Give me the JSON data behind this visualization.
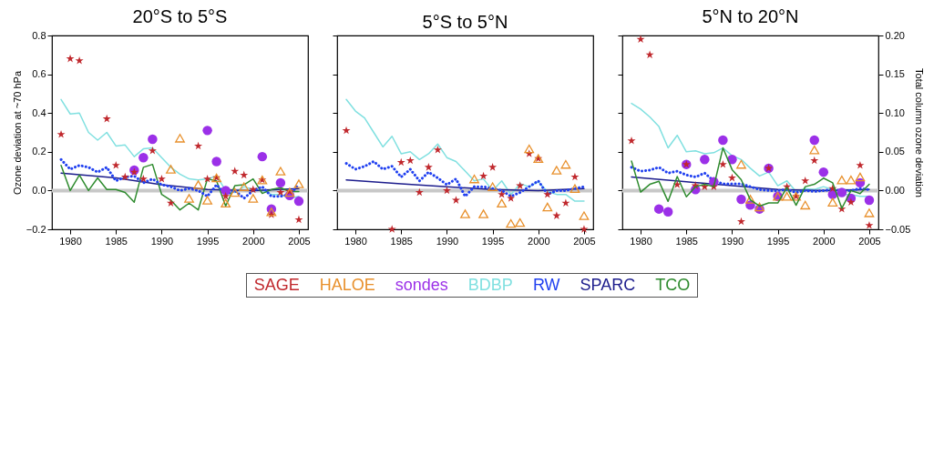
{
  "chart_data": [
    {
      "type": "line",
      "title": "20°S to 5°S",
      "ylabel": "Ozone deviation at ~70 hPa",
      "legend": "bottom",
      "xlim": [
        1978,
        2006
      ],
      "xticks": [
        1980,
        1985,
        1990,
        1995,
        2000,
        2005
      ],
      "ylim": [
        -0.2,
        0.8
      ],
      "yticks": [
        {
          "value": -0.2,
          "label": "−0.2"
        },
        {
          "value": 0,
          "label": "0.0"
        },
        0.2,
        0.4,
        0.6,
        0.8
      ],
      "ref_lines": [
        {
          "axis": "y",
          "value": 0,
          "color": "#c8c8c8"
        }
      ],
      "series": [
        {
          "name": "SAGE",
          "type": "scatter",
          "marker": "star",
          "color": "#c0282d",
          "x": [
            1979,
            1980,
            1981,
            1984,
            1985,
            1986,
            1987,
            1988,
            1989,
            1990,
            1991,
            1994,
            1995,
            1996,
            1997,
            1998,
            1999,
            2000,
            2001,
            2002,
            2003,
            2004,
            2005
          ],
          "values": [
            0.29,
            0.68,
            0.67,
            0.37,
            0.13,
            0.07,
            0.095,
            0.06,
            0.205,
            0.06,
            -0.065,
            0.23,
            0.06,
            0.067,
            -0.03,
            0.1,
            0.08,
            0.005,
            0.055,
            -0.125,
            -0.01,
            -0.005,
            -0.15
          ]
        },
        {
          "name": "HALOE",
          "type": "scatter",
          "marker": "triangle",
          "color": "#e8902c",
          "x": [
            1991,
            1992,
            1993,
            1994,
            1995,
            1996,
            1997,
            1998,
            1999,
            2000,
            2001,
            2002,
            2003,
            2004,
            2005
          ],
          "values": [
            0.11,
            0.27,
            -0.04,
            0.03,
            -0.05,
            0.065,
            -0.065,
            -0.01,
            0.02,
            -0.04,
            0.055,
            -0.11,
            0.1,
            -0.01,
            0.035
          ]
        },
        {
          "name": "sondes",
          "type": "scatter",
          "marker": "circle",
          "color": "#9b30e8",
          "x": [
            1987,
            1988,
            1989,
            1995,
            1996,
            1997,
            2001,
            2002,
            2003,
            2004,
            2005
          ],
          "values": [
            0.105,
            0.17,
            0.265,
            0.31,
            0.15,
            0.0,
            0.175,
            -0.095,
            0.04,
            -0.025,
            -0.055
          ]
        },
        {
          "name": "BDBP",
          "type": "line",
          "line_style": "solid",
          "color": "#80e0e0",
          "x": [
            1979,
            1980,
            1981,
            1982,
            1983,
            1984,
            1985,
            1986,
            1987,
            1988,
            1989,
            1990,
            1991,
            1992,
            1993,
            1994,
            1995,
            1996,
            1997,
            1998,
            1999,
            2000,
            2001,
            2002,
            2003,
            2004,
            2005
          ],
          "values": [
            0.47,
            0.395,
            0.4,
            0.3,
            0.26,
            0.3,
            0.23,
            0.235,
            0.175,
            0.215,
            0.22,
            0.17,
            0.12,
            0.085,
            0.06,
            0.055,
            0.06,
            0.075,
            0.0,
            -0.01,
            0.02,
            0.005,
            0.0,
            -0.02,
            -0.02,
            -0.04,
            -0.03
          ]
        },
        {
          "name": "RW",
          "type": "line",
          "line_style": "dotted",
          "color": "#2040f0",
          "x": [
            1979,
            1980,
            1981,
            1982,
            1983,
            1984,
            1985,
            1986,
            1987,
            1988,
            1989,
            1990,
            1991,
            1992,
            1993,
            1994,
            1995,
            1996,
            1997,
            1998,
            1999,
            2000,
            2001,
            2002,
            2003,
            2004,
            2005
          ],
          "values": [
            0.16,
            0.11,
            0.13,
            0.12,
            0.095,
            0.12,
            0.05,
            0.07,
            0.075,
            0.04,
            0.06,
            0.03,
            0.02,
            0.0,
            0.01,
            0.0,
            -0.03,
            0.03,
            -0.02,
            0.0,
            -0.04,
            0.0,
            0.02,
            -0.03,
            -0.03,
            -0.02,
            0.03
          ]
        },
        {
          "name": "SPARC",
          "type": "line",
          "line_style": "solid",
          "color": "#1c1c8c",
          "x": [
            1979,
            1985,
            1990,
            1995,
            2000,
            2005
          ],
          "values": [
            0.09,
            0.065,
            0.03,
            0.005,
            0.0,
            0.01
          ]
        },
        {
          "name": "TCO",
          "type": "line",
          "line_style": "solid",
          "color": "#2e8b2e",
          "x": [
            1979,
            1980,
            1981,
            1982,
            1983,
            1984,
            1985,
            1986,
            1987,
            1988,
            1989,
            1990,
            1991,
            1992,
            1993,
            1994,
            1995,
            1996,
            1997,
            1998,
            1999,
            2000,
            2001,
            2002,
            2003,
            2004,
            2005
          ],
          "values": [
            0.13,
            0.0,
            0.08,
            0.0,
            0.065,
            0.005,
            0.005,
            -0.01,
            -0.06,
            0.12,
            0.135,
            -0.02,
            -0.05,
            -0.1,
            -0.065,
            -0.1,
            0.06,
            0.05,
            -0.08,
            0.025,
            0.03,
            0.06,
            -0.015,
            0.005,
            0.015,
            -0.005,
            -0.005
          ]
        }
      ]
    },
    {
      "type": "line",
      "title": "5°S to 5°N",
      "tick_labels": "x",
      "xlim": [
        1978,
        2006
      ],
      "xticks": [
        1980,
        1985,
        1990,
        1995,
        2000,
        2005
      ],
      "ylim": [
        -0.2,
        0.8
      ],
      "yticks": [
        -0.2,
        0,
        0.2,
        0.4,
        0.6,
        0.8
      ],
      "ref_lines": [
        {
          "axis": "y",
          "value": 0,
          "color": "#c8c8c8"
        }
      ],
      "series": [
        {
          "type": "scatter",
          "marker": "star",
          "color": "#c0282d",
          "x": [
            1979,
            1984,
            1985,
            1986,
            1987,
            1988,
            1989,
            1990,
            1991,
            1994,
            1995,
            1996,
            1997,
            1998,
            1999,
            2000,
            2001,
            2002,
            2003,
            2004,
            2005
          ],
          "values": [
            0.31,
            -0.2,
            0.145,
            0.155,
            -0.01,
            0.12,
            0.21,
            0.0,
            -0.05,
            0.075,
            0.12,
            -0.02,
            -0.04,
            0.025,
            0.19,
            0.165,
            -0.02,
            -0.13,
            -0.065,
            0.07,
            -0.2
          ]
        },
        {
          "type": "scatter",
          "marker": "triangle",
          "color": "#e8902c",
          "x": [
            1992,
            1993,
            1994,
            1995,
            1996,
            1997,
            1998,
            1999,
            2000,
            2001,
            2002,
            2003,
            2004,
            2005
          ],
          "values": [
            -0.12,
            0.06,
            -0.12,
            0.02,
            -0.065,
            -0.17,
            -0.165,
            0.215,
            0.165,
            -0.085,
            0.105,
            0.135,
            0.01,
            -0.13
          ]
        },
        {
          "type": "line",
          "line_style": "solid",
          "color": "#80e0e0",
          "x": [
            1979,
            1980,
            1981,
            1982,
            1983,
            1984,
            1985,
            1986,
            1987,
            1988,
            1989,
            1990,
            1991,
            1992,
            1993,
            1994,
            1995,
            1996,
            1997,
            1998,
            1999,
            2000,
            2001,
            2002,
            2003,
            2004,
            2005
          ],
          "values": [
            0.47,
            0.41,
            0.375,
            0.3,
            0.225,
            0.28,
            0.19,
            0.2,
            0.16,
            0.19,
            0.24,
            0.17,
            0.15,
            0.1,
            0.05,
            0.06,
            0.0,
            0.05,
            -0.02,
            0.035,
            0.02,
            0.045,
            -0.005,
            -0.02,
            -0.02,
            -0.055,
            -0.055
          ]
        },
        {
          "type": "line",
          "line_style": "dotted",
          "color": "#2040f0",
          "x": [
            1979,
            1980,
            1981,
            1982,
            1983,
            1984,
            1985,
            1986,
            1987,
            1988,
            1989,
            1990,
            1991,
            1992,
            1993,
            1994,
            1995,
            1996,
            1997,
            1998,
            1999,
            2000,
            2001,
            2002,
            2003,
            2004,
            2005
          ],
          "values": [
            0.14,
            0.11,
            0.125,
            0.15,
            0.11,
            0.125,
            0.07,
            0.11,
            0.05,
            0.095,
            0.065,
            0.03,
            0.06,
            -0.03,
            0.02,
            0.02,
            0.01,
            0.0,
            -0.03,
            -0.01,
            0.02,
            0.05,
            -0.02,
            0.0,
            0.0,
            0.01,
            0.02
          ]
        },
        {
          "type": "line",
          "line_style": "solid",
          "color": "#1c1c8c",
          "x": [
            1979,
            1985,
            1990,
            1995,
            2000,
            2005
          ],
          "values": [
            0.055,
            0.035,
            0.02,
            0.005,
            0.0,
            0.01
          ]
        }
      ]
    },
    {
      "type": "line",
      "title": "5°N to 20°N",
      "tick_labels": "x",
      "y2label": "Total column ozone deviation",
      "xlim": [
        1978,
        2006
      ],
      "xticks": [
        1980,
        1985,
        1990,
        1995,
        2000,
        2005
      ],
      "ylim": [
        -0.2,
        0.8
      ],
      "yticks": [
        -0.2,
        0,
        0.2,
        0.4,
        0.6,
        0.8
      ],
      "y2lim": [
        -0.05,
        0.2
      ],
      "y2ticks": [
        {
          "value": -0.05,
          "label": "−0.05"
        },
        {
          "value": 0,
          "label": "0.00"
        },
        {
          "value": 0.05,
          "label": "0.05"
        },
        {
          "value": 0.1,
          "label": "0.10"
        },
        {
          "value": 0.15,
          "label": "0.15"
        },
        {
          "value": 0.2,
          "label": "0.20"
        }
      ],
      "ref_lines": [
        {
          "axis": "y",
          "value": 0,
          "color": "#c8c8c8"
        }
      ],
      "series": [
        {
          "type": "scatter",
          "marker": "star",
          "color": "#c0282d",
          "x": [
            1979,
            1980,
            1981,
            1984,
            1985,
            1986,
            1987,
            1988,
            1989,
            1990,
            1991,
            1994,
            1996,
            1997,
            1998,
            1999,
            2001,
            2002,
            2003,
            2004,
            2005
          ],
          "values": [
            0.257,
            0.78,
            0.7,
            0.03,
            0.135,
            0.025,
            0.02,
            0.02,
            0.135,
            0.065,
            -0.16,
            0.115,
            0.02,
            -0.03,
            0.05,
            0.155,
            0.01,
            -0.095,
            -0.06,
            0.13,
            -0.18
          ]
        },
        {
          "type": "scatter",
          "marker": "triangle",
          "color": "#e8902c",
          "x": [
            1991,
            1992,
            1993,
            1995,
            1996,
            1997,
            1998,
            1999,
            2001,
            2002,
            2003,
            2004,
            2005
          ],
          "values": [
            0.135,
            -0.045,
            -0.085,
            -0.03,
            -0.03,
            -0.03,
            -0.075,
            0.21,
            -0.06,
            0.055,
            0.055,
            0.07,
            -0.115
          ]
        },
        {
          "type": "scatter",
          "marker": "circle",
          "color": "#9b30e8",
          "x": [
            1982,
            1983,
            1985,
            1986,
            1987,
            1988,
            1989,
            1990,
            1991,
            1992,
            1993,
            1994,
            1995,
            1999,
            2000,
            2001,
            2002,
            2003,
            2004,
            2005
          ],
          "values": [
            -0.095,
            -0.11,
            0.135,
            0.005,
            0.16,
            0.045,
            0.26,
            0.16,
            -0.045,
            -0.075,
            -0.095,
            0.115,
            -0.03,
            0.26,
            0.095,
            -0.02,
            -0.01,
            -0.04,
            0.04,
            -0.05
          ]
        },
        {
          "type": "line",
          "line_style": "solid",
          "color": "#80e0e0",
          "x": [
            1979,
            1980,
            1981,
            1982,
            1983,
            1984,
            1985,
            1986,
            1987,
            1988,
            1989,
            1990,
            1991,
            1992,
            1993,
            1994,
            1995,
            1996,
            1997,
            1998,
            1999,
            2000,
            2001,
            2002,
            2003,
            2004,
            2005
          ],
          "values": [
            0.45,
            0.42,
            0.38,
            0.33,
            0.22,
            0.285,
            0.2,
            0.205,
            0.19,
            0.195,
            0.22,
            0.18,
            0.16,
            0.115,
            0.075,
            0.095,
            0.025,
            0.05,
            -0.005,
            0.01,
            0.005,
            0.02,
            0.005,
            -0.02,
            -0.02,
            -0.03,
            -0.03
          ]
        },
        {
          "type": "line",
          "line_style": "dotted",
          "color": "#2040f0",
          "x": [
            1979,
            1980,
            1981,
            1982,
            1983,
            1984,
            1985,
            1986,
            1987,
            1988,
            1989,
            1990,
            1991,
            1992,
            1993,
            1994,
            1995,
            1996,
            1997,
            1998,
            1999,
            2000,
            2001,
            2002,
            2003,
            2004,
            2005
          ],
          "values": [
            0.12,
            0.1,
            0.105,
            0.12,
            0.09,
            0.1,
            0.08,
            0.07,
            0.09,
            0.05,
            0.035,
            0.035,
            0.035,
            0.02,
            0.005,
            0.0,
            0.0,
            0.005,
            -0.01,
            0.0,
            -0.005,
            0.0,
            0.005,
            0.0,
            0.0,
            0.01,
            0.005
          ]
        },
        {
          "type": "line",
          "line_style": "solid",
          "color": "#1c1c8c",
          "x": [
            1979,
            1985,
            1990,
            1995,
            2000,
            2005
          ],
          "values": [
            0.07,
            0.045,
            0.025,
            0.005,
            0.0,
            0.005
          ]
        },
        {
          "type": "line",
          "axis": "y2",
          "line_style": "solid",
          "color": "#2e8b2e",
          "x": [
            1979,
            1980,
            1981,
            1982,
            1983,
            1984,
            1985,
            1986,
            1987,
            1988,
            1989,
            1990,
            1991,
            1992,
            1993,
            1994,
            1995,
            1996,
            1997,
            1998,
            1999,
            2000,
            2001,
            2002,
            2003,
            2004,
            2005
          ],
          "values": [
            0.038,
            -0.002,
            0.008,
            0.012,
            -0.014,
            0.018,
            -0.008,
            0.005,
            0.008,
            0.005,
            0.055,
            0.027,
            0.014,
            -0.012,
            -0.02,
            -0.016,
            -0.016,
            0.004,
            -0.019,
            0.005,
            0.008,
            0.016,
            0.01,
            -0.023,
            0.0,
            -0.004,
            0.008
          ]
        }
      ]
    }
  ]
}
